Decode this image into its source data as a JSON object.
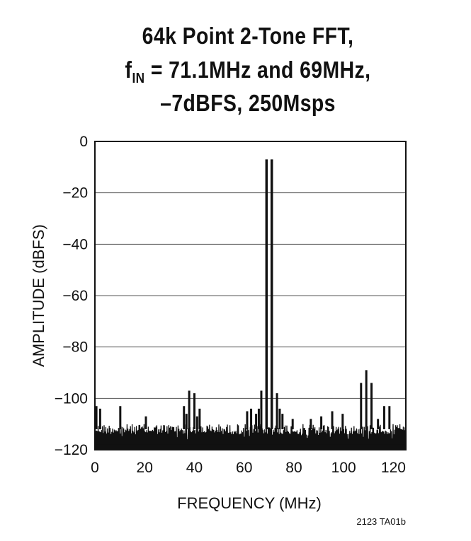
{
  "title": {
    "line1": "64k Point 2-Tone FFT,",
    "line2_pre": "f",
    "line2_sub": "IN",
    "line2_post": " = 71.1MHz and 69MHz,",
    "line3": "–7dBFS, 250Msps"
  },
  "figure_code": "2123 TA01b",
  "chart_data": {
    "type": "line",
    "title": "64k Point 2-Tone FFT, fIN = 71.1MHz and 69MHz, –7dBFS, 250Msps",
    "xlabel": "FREQUENCY (MHz)",
    "ylabel": "AMPLITUDE (dBFS)",
    "xlim": [
      0,
      125
    ],
    "ylim": [
      -120,
      0
    ],
    "xticks": [
      0,
      20,
      40,
      60,
      80,
      100,
      120
    ],
    "yticks": [
      0,
      -20,
      -40,
      -60,
      -80,
      -100,
      -120
    ],
    "grid": "horizontal",
    "noise_floor_dBFS": [
      -118,
      -110
    ],
    "series": [
      {
        "values": [
          [
            69,
            -7
          ],
          [
            71.1,
            -7
          ],
          [
            66.9,
            -97
          ],
          [
            73.2,
            -98
          ],
          [
            37.9,
            -97
          ],
          [
            40.0,
            -98
          ],
          [
            35.8,
            -103
          ],
          [
            42.1,
            -104
          ],
          [
            36.8,
            -106
          ],
          [
            41.1,
            -107
          ],
          [
            65.9,
            -104
          ],
          [
            74.3,
            -104
          ],
          [
            64.8,
            -106
          ],
          [
            75.4,
            -106
          ],
          [
            107.0,
            -94
          ],
          [
            109.1,
            -89
          ],
          [
            111.2,
            -94
          ],
          [
            116.3,
            -103
          ],
          [
            118.4,
            -103
          ],
          [
            2.1,
            -104
          ],
          [
            10.2,
            -103
          ],
          [
            0.6,
            -103
          ],
          [
            20.5,
            -107
          ],
          [
            61.2,
            -105
          ],
          [
            62.8,
            -104
          ],
          [
            79.5,
            -108
          ],
          [
            95.4,
            -105
          ],
          [
            99.6,
            -106
          ],
          [
            86.8,
            -108
          ],
          [
            91.0,
            -107
          ],
          [
            113.8,
            -108
          ]
        ]
      }
    ]
  }
}
